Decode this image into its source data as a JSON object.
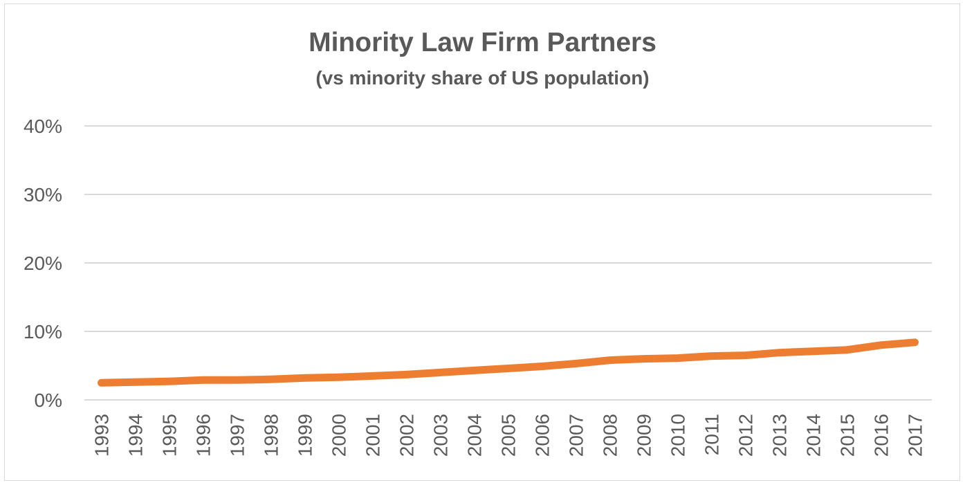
{
  "chart_data": {
    "type": "line",
    "title": "Minority Law Firm Partners",
    "subtitle": "(vs minority share of US population)",
    "xlabel": "",
    "ylabel": "",
    "categories": [
      "1993",
      "1994",
      "1995",
      "1996",
      "1997",
      "1998",
      "1999",
      "2000",
      "2001",
      "2002",
      "2003",
      "2004",
      "2005",
      "2006",
      "2007",
      "2008",
      "2009",
      "2010",
      "2011",
      "2012",
      "2013",
      "2014",
      "2015",
      "2016",
      "2017"
    ],
    "series": [
      {
        "values": [
          2.5,
          2.6,
          2.7,
          2.9,
          2.9,
          3.0,
          3.2,
          3.3,
          3.5,
          3.7,
          4.0,
          4.3,
          4.6,
          4.9,
          5.3,
          5.8,
          6.0,
          6.1,
          6.4,
          6.5,
          6.9,
          7.1,
          7.3,
          8.0,
          8.4
        ],
        "color": "#ed7d31"
      }
    ],
    "ylim": [
      0,
      40
    ],
    "yticks": [
      0,
      10,
      20,
      30,
      40
    ],
    "ytick_labels": [
      "0%",
      "10%",
      "20%",
      "30%",
      "40%"
    ],
    "grid": true,
    "legend": "none",
    "colors": {
      "grid": "#d9d9d9",
      "text": "#595959",
      "border": "#d9d9d9"
    }
  }
}
